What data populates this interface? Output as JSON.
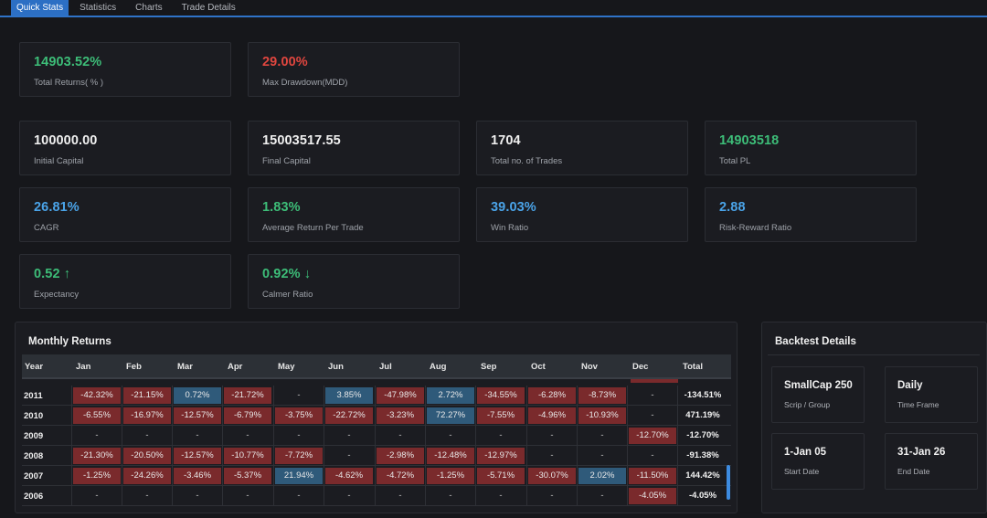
{
  "tabs": [
    "Quick Stats",
    "Statistics",
    "Charts",
    "Trade Details"
  ],
  "stats": {
    "total_returns": {
      "value": "14903.52%",
      "label": "Total Returns( % )"
    },
    "max_drawdown": {
      "value": "29.00%",
      "label": "Max Drawdown(MDD)"
    },
    "initial_capital": {
      "value": "100000.00",
      "label": "Initial Capital"
    },
    "final_capital": {
      "value": "15003517.55",
      "label": "Final Capital"
    },
    "total_trades": {
      "value": "1704",
      "label": "Total no. of Trades"
    },
    "total_pl": {
      "value": "14903518",
      "label": "Total PL"
    },
    "cagr": {
      "value": "26.81%",
      "label": "CAGR"
    },
    "avg_return": {
      "value": "1.83%",
      "label": "Average Return Per Trade"
    },
    "win_ratio": {
      "value": "39.03%",
      "label": "Win Ratio"
    },
    "risk_reward": {
      "value": "2.88",
      "label": "Risk-Reward Ratio"
    },
    "expectancy": {
      "value": "0.52 ↑",
      "label": "Expectancy"
    },
    "calmer": {
      "value": "0.92% ↓",
      "label": "Calmer Ratio"
    }
  },
  "colors": {
    "positive": "#3dbd78",
    "negative": "#e0463f",
    "accent": "#2c6fc4",
    "info": "#4aa3e8"
  },
  "monthly": {
    "title": "Monthly Returns",
    "headers": [
      "Year",
      "Jan",
      "Feb",
      "Mar",
      "Apr",
      "May",
      "Jun",
      "Jul",
      "Aug",
      "Sep",
      "Oct",
      "Nov",
      "Dec",
      "Total"
    ],
    "rows": [
      {
        "year": "2011",
        "cells": [
          "-42.32%",
          "-21.15%",
          "0.72%",
          "-21.72%",
          "-",
          "3.85%",
          "-47.98%",
          "2.72%",
          "-34.55%",
          "-6.28%",
          "-8.73%",
          "-"
        ],
        "total": "-134.51%"
      },
      {
        "year": "2010",
        "cells": [
          "-6.55%",
          "-16.97%",
          "-12.57%",
          "-6.79%",
          "-3.75%",
          "-22.72%",
          "-3.23%",
          "72.27%",
          "-7.55%",
          "-4.96%",
          "-10.93%",
          "-"
        ],
        "total": "471.19%"
      },
      {
        "year": "2009",
        "cells": [
          "-",
          "-",
          "-",
          "-",
          "-",
          "-",
          "-",
          "-",
          "-",
          "-",
          "-",
          "-12.70%"
        ],
        "total": "-12.70%"
      },
      {
        "year": "2008",
        "cells": [
          "-21.30%",
          "-20.50%",
          "-12.57%",
          "-10.77%",
          "-7.72%",
          "-",
          "-2.98%",
          "-12.48%",
          "-12.97%",
          "-",
          "-",
          "-"
        ],
        "total": "-91.38%"
      },
      {
        "year": "2007",
        "cells": [
          "-1.25%",
          "-24.26%",
          "-3.46%",
          "-5.37%",
          "21.94%",
          "-4.62%",
          "-4.72%",
          "-1.25%",
          "-5.71%",
          "-30.07%",
          "2.02%",
          "-11.50%"
        ],
        "total": "144.42%"
      },
      {
        "year": "2006",
        "cells": [
          "-",
          "-",
          "-",
          "-",
          "-",
          "-",
          "-",
          "-",
          "-",
          "-",
          "-",
          "-4.05%"
        ],
        "total": "-4.05%"
      }
    ]
  },
  "backtest": {
    "title": "Backtest Details",
    "items": [
      {
        "value": "SmallCap 250",
        "label": "Scrip / Group"
      },
      {
        "value": "Daily",
        "label": "Time Frame"
      },
      {
        "value": "1-Jan 05",
        "label": "Start Date"
      },
      {
        "value": "31-Jan 26",
        "label": "End Date"
      }
    ]
  }
}
